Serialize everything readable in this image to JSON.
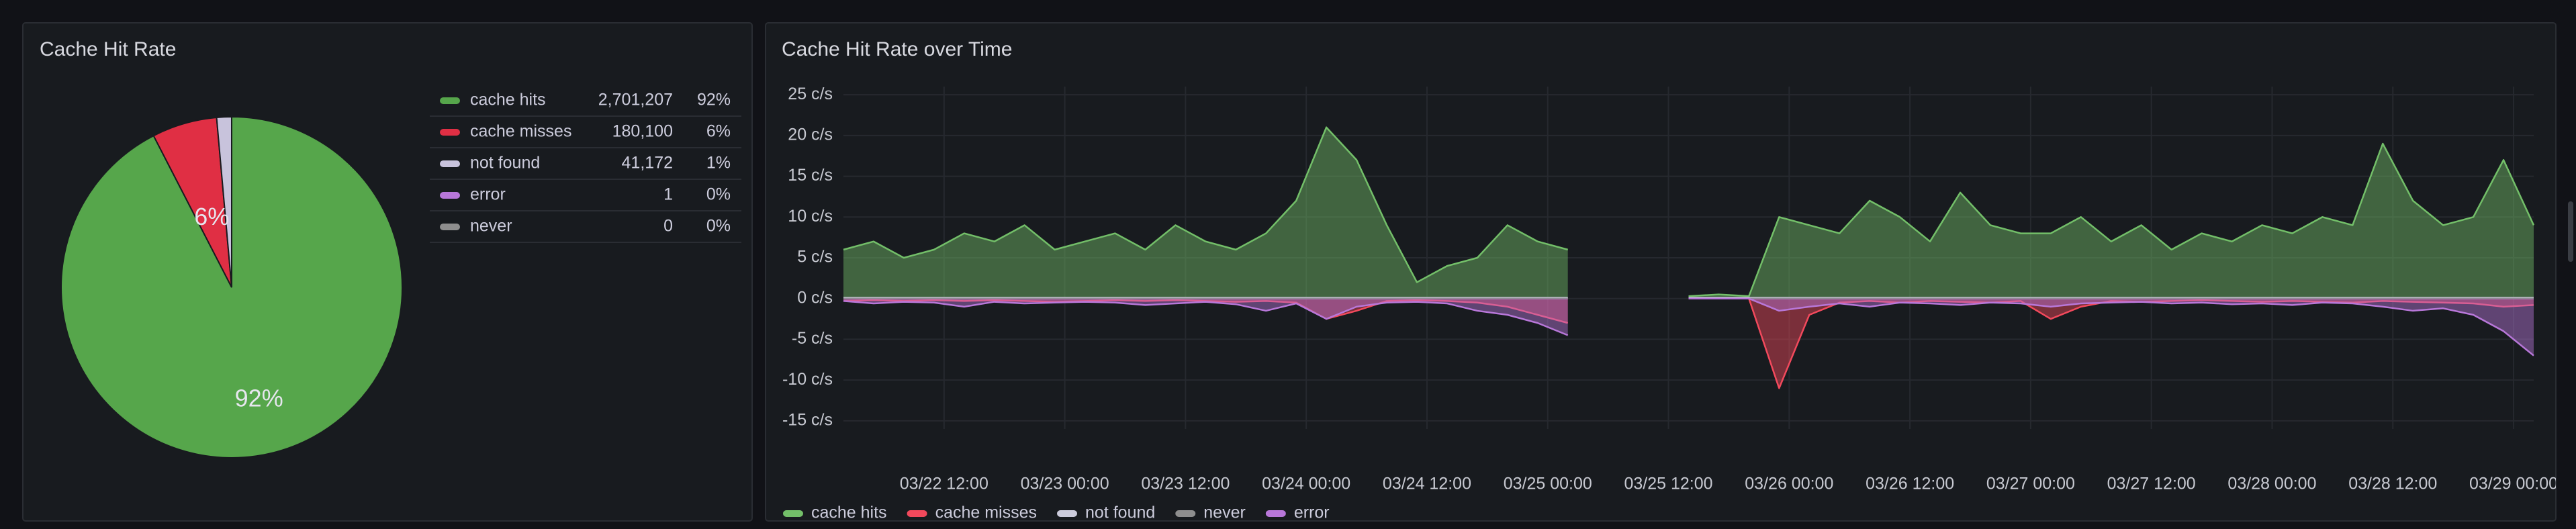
{
  "chart_data": [
    {
      "type": "pie",
      "title": "Cache Hit Rate",
      "categories": [
        "cache hits",
        "cache misses",
        "not found",
        "error",
        "never"
      ],
      "colors": [
        "#56a64b",
        "#e02f44",
        "#c8c3dc",
        "#b877d9",
        "#8e8e8e"
      ],
      "values": [
        2701207,
        180100,
        41172,
        1,
        0
      ],
      "value_labels": [
        "2,701,207",
        "180,100",
        "41,172",
        "1",
        "0"
      ],
      "percents": [
        92,
        6,
        1,
        0,
        0
      ],
      "percent_labels": [
        "92%",
        "6%",
        "1%",
        "0%",
        "0%"
      ],
      "legend": "right"
    },
    {
      "type": "area",
      "title": "Cache Hit Rate over Time",
      "x": [
        "03/22 02:00",
        "03/22 05:00",
        "03/22 08:00",
        "03/22 11:00",
        "03/22 14:00",
        "03/22 17:00",
        "03/22 20:00",
        "03/22 23:00",
        "03/23 02:00",
        "03/23 05:00",
        "03/23 08:00",
        "03/23 11:00",
        "03/23 14:00",
        "03/23 17:00",
        "03/23 20:00",
        "03/23 23:00",
        "03/24 02:00",
        "03/24 05:00",
        "03/24 08:00",
        "03/24 11:00",
        "03/24 14:00",
        "03/24 17:00",
        "03/24 20:00",
        "03/24 23:00",
        "03/25 02:00",
        "03/25 05:00",
        "03/25 08:00",
        "03/25 11:00",
        "03/25 14:00",
        "03/25 17:00",
        "03/25 20:00",
        "03/25 23:00",
        "03/26 02:00",
        "03/26 05:00",
        "03/26 08:00",
        "03/26 11:00",
        "03/26 14:00",
        "03/26 17:00",
        "03/26 20:00",
        "03/26 23:00",
        "03/27 02:00",
        "03/27 05:00",
        "03/27 08:00",
        "03/27 11:00",
        "03/27 14:00",
        "03/27 17:00",
        "03/27 20:00",
        "03/27 23:00",
        "03/28 02:00",
        "03/28 05:00",
        "03/28 08:00",
        "03/28 11:00",
        "03/28 14:00",
        "03/28 17:00",
        "03/28 20:00",
        "03/28 23:00",
        "03/29 02:00"
      ],
      "xlim": [
        "03/22 02:00",
        "03/29 02:00"
      ],
      "xticks": [
        "03/22 12:00",
        "03/23 00:00",
        "03/23 12:00",
        "03/24 00:00",
        "03/24 12:00",
        "03/25 00:00",
        "03/25 12:00",
        "03/26 00:00",
        "03/26 12:00",
        "03/27 00:00",
        "03/27 12:00",
        "03/28 00:00",
        "03/28 12:00",
        "03/29 00:00"
      ],
      "ylim": [
        -16,
        26
      ],
      "yticks": [
        {
          "value": 25,
          "label": "25 c/s"
        },
        {
          "value": 20,
          "label": "20 c/s"
        },
        {
          "value": 15,
          "label": "15 c/s"
        },
        {
          "value": 10,
          "label": "10 c/s"
        },
        {
          "value": 5,
          "label": "5 c/s"
        },
        {
          "value": 0,
          "label": "0 c/s"
        },
        {
          "value": -5,
          "label": "-5 c/s"
        },
        {
          "value": -10,
          "label": "-10 c/s"
        },
        {
          "value": -15,
          "label": "-15 c/s"
        }
      ],
      "grid": true,
      "legend": "bottom",
      "series": [
        {
          "name": "cache hits",
          "color": "#73bf69",
          "values": [
            6,
            7,
            5,
            6,
            8,
            7,
            9,
            6,
            7,
            8,
            6,
            9,
            7,
            6,
            8,
            12,
            21,
            17,
            9,
            2,
            4,
            5,
            9,
            7,
            6,
            null,
            null,
            null,
            0.3,
            0.5,
            0.3,
            10,
            9,
            8,
            12,
            10,
            7,
            13,
            9,
            8,
            8,
            10,
            7,
            9,
            6,
            8,
            7,
            9,
            8,
            10,
            9,
            19,
            12,
            9,
            10,
            17,
            9
          ]
        },
        {
          "name": "cache misses",
          "color": "#f2495c",
          "values": [
            -0.3,
            -0.2,
            -0.3,
            -0.2,
            -0.3,
            -0.2,
            -0.3,
            -0.4,
            -0.3,
            -0.2,
            -0.3,
            -0.2,
            -0.3,
            -0.4,
            -0.3,
            -0.5,
            -2.5,
            -1.5,
            -0.3,
            -0.2,
            -0.3,
            -0.5,
            -1,
            -2,
            -3,
            null,
            null,
            null,
            0,
            0,
            0,
            -11,
            -2,
            -0.5,
            -0.3,
            -0.5,
            -0.3,
            -0.4,
            -0.5,
            -0.3,
            -2.5,
            -1,
            -0.3,
            -0.4,
            -0.3,
            -0.2,
            -0.3,
            -0.4,
            -0.3,
            -0.4,
            -0.5,
            -0.3,
            -0.4,
            -0.5,
            -0.6,
            -1,
            -0.8
          ]
        },
        {
          "name": "not found",
          "color": "#ccccdc",
          "values": [
            0.1,
            0.1,
            0.1,
            0.1,
            0.1,
            0.1,
            0.1,
            0.1,
            0.1,
            0.1,
            0.1,
            0.1,
            0.1,
            0.1,
            0.1,
            0.1,
            0.1,
            0.1,
            0.1,
            0.1,
            0.1,
            0.1,
            0.1,
            0.1,
            0.1,
            null,
            null,
            null,
            0.1,
            0.1,
            0.1,
            0.1,
            0.1,
            0.1,
            0.1,
            0.1,
            0.1,
            0.1,
            0.1,
            0.1,
            0.1,
            0.1,
            0.1,
            0.1,
            0.1,
            0.1,
            0.1,
            0.1,
            0.1,
            0.1,
            0.1,
            0.1,
            0.1,
            0.1,
            0.1,
            0.1,
            0.1
          ]
        },
        {
          "name": "never",
          "color": "#8e8e8e",
          "values": [
            0,
            0,
            0,
            0,
            0,
            0,
            0,
            0,
            0,
            0,
            0,
            0,
            0,
            0,
            0,
            0,
            0,
            0,
            0,
            0,
            0,
            0,
            0,
            0,
            0,
            null,
            null,
            null,
            0,
            0,
            0,
            0,
            0,
            0,
            0,
            0,
            0,
            0,
            0,
            0,
            0,
            0,
            0,
            0,
            0,
            0,
            0,
            0,
            0,
            0,
            0,
            0,
            0,
            0,
            0,
            0,
            0
          ]
        },
        {
          "name": "error",
          "color": "#b877d9",
          "values": [
            -0.3,
            -0.6,
            -0.4,
            -0.5,
            -1,
            -0.4,
            -0.6,
            -0.5,
            -0.4,
            -0.5,
            -0.8,
            -0.6,
            -0.4,
            -0.7,
            -1.5,
            -0.6,
            -2.5,
            -1,
            -0.5,
            -0.4,
            -0.6,
            -1.5,
            -2,
            -3,
            -4.5,
            null,
            null,
            null,
            0,
            0,
            0,
            -1.5,
            -1,
            -0.6,
            -1,
            -0.5,
            -0.6,
            -0.8,
            -0.5,
            -0.6,
            -1,
            -0.6,
            -0.5,
            -0.4,
            -0.6,
            -0.5,
            -0.7,
            -0.6,
            -0.8,
            -0.5,
            -0.6,
            -1,
            -1.5,
            -1.2,
            -2,
            -4,
            -7
          ]
        }
      ]
    }
  ]
}
